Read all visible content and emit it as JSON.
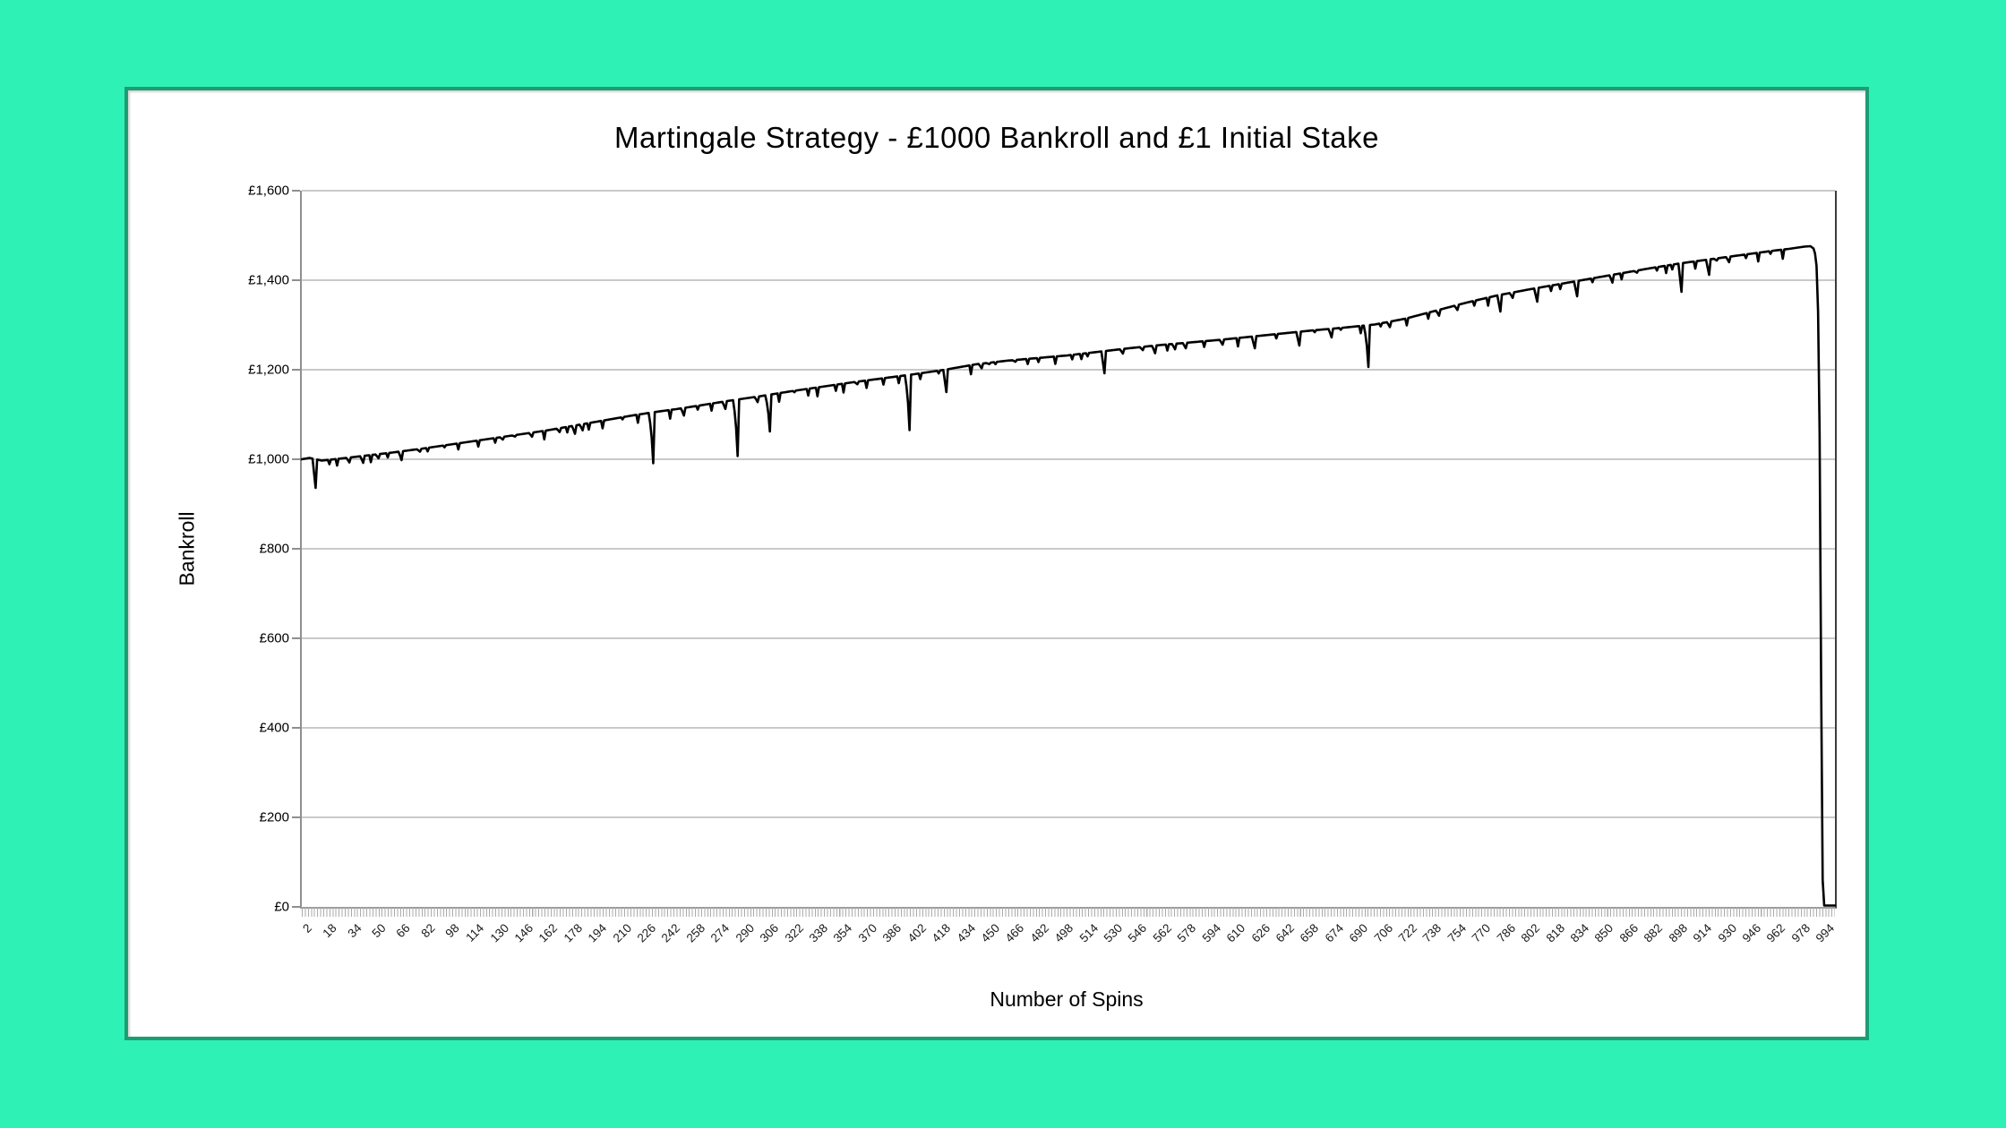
{
  "colors": {
    "page_background": "#2ef1b5",
    "panel_border": "#1e9c72",
    "panel_background": "#ffffff",
    "gridline": "#c9c9c9",
    "axis_line": "#8f8f8f",
    "plot_right_wall": "#3c3c3c",
    "series_line": "#000000"
  },
  "chart_data": {
    "type": "line",
    "title": "Martingale Strategy - £1000 Bankroll and £1 Initial Stake",
    "xlabel": "Number of Spins",
    "ylabel": "Bankroll",
    "legend": "none",
    "grid": true,
    "xlim": [
      1,
      1000
    ],
    "ylim": [
      0,
      1600
    ],
    "y_tick_values": [
      0,
      200,
      400,
      600,
      800,
      1000,
      1200,
      1400,
      1600
    ],
    "y_tick_labels": [
      "£0",
      "£200",
      "£400",
      "£600",
      "£800",
      "£1,000",
      "£1,200",
      "£1,400",
      "£1,600"
    ],
    "x_tick_labels": [
      2,
      18,
      34,
      50,
      66,
      82,
      98,
      114,
      130,
      146,
      162,
      178,
      194,
      210,
      226,
      242,
      258,
      274,
      290,
      306,
      322,
      338,
      354,
      370,
      386,
      402,
      418,
      434,
      450,
      466,
      482,
      498,
      514,
      530,
      546,
      562,
      578,
      594,
      610,
      626,
      642,
      658,
      674,
      690,
      706,
      722,
      738,
      754,
      770,
      786,
      802,
      818,
      834,
      850,
      866,
      882,
      898,
      914,
      930,
      946,
      962,
      978,
      994
    ],
    "series": [
      {
        "name": "Bankroll",
        "color": "#000000",
        "start_bankroll": 1000,
        "initial_stake": 1,
        "trend_keypoints": [
          [
            1,
            1000
          ],
          [
            6,
            1003
          ],
          [
            14,
            997
          ],
          [
            22,
            1000
          ],
          [
            30,
            1003
          ],
          [
            45,
            1009
          ],
          [
            60,
            1015
          ],
          [
            80,
            1024
          ],
          [
            100,
            1034
          ],
          [
            120,
            1044
          ],
          [
            140,
            1054
          ],
          [
            160,
            1064
          ],
          [
            180,
            1076
          ],
          [
            200,
            1088
          ],
          [
            215,
            1097
          ],
          [
            230,
            1105
          ],
          [
            245,
            1112
          ],
          [
            260,
            1120
          ],
          [
            280,
            1131
          ],
          [
            300,
            1141
          ],
          [
            320,
            1152
          ],
          [
            340,
            1162
          ],
          [
            360,
            1172
          ],
          [
            380,
            1181
          ],
          [
            400,
            1190
          ],
          [
            420,
            1200
          ],
          [
            440,
            1212
          ],
          [
            460,
            1220
          ],
          [
            480,
            1226
          ],
          [
            500,
            1232
          ],
          [
            520,
            1240
          ],
          [
            540,
            1248
          ],
          [
            560,
            1255
          ],
          [
            580,
            1261
          ],
          [
            600,
            1267
          ],
          [
            620,
            1274
          ],
          [
            640,
            1281
          ],
          [
            660,
            1288
          ],
          [
            680,
            1294
          ],
          [
            700,
            1301
          ],
          [
            720,
            1314
          ],
          [
            740,
            1332
          ],
          [
            760,
            1350
          ],
          [
            780,
            1366
          ],
          [
            800,
            1379
          ],
          [
            820,
            1391
          ],
          [
            840,
            1403
          ],
          [
            860,
            1415
          ],
          [
            880,
            1427
          ],
          [
            900,
            1438
          ],
          [
            915,
            1445
          ],
          [
            930,
            1452
          ],
          [
            945,
            1459
          ],
          [
            960,
            1466
          ],
          [
            970,
            1470
          ],
          [
            980,
            1475
          ],
          [
            984,
            1476
          ]
        ],
        "major_dips": [
          [
            10,
            936
          ],
          [
            19,
            989
          ],
          [
            57,
            1004
          ],
          [
            127,
            1037
          ],
          [
            174,
            1060
          ],
          [
            230,
            991
          ],
          [
            285,
            1007
          ],
          [
            306,
            1062
          ],
          [
            397,
            1065
          ],
          [
            421,
            1150
          ],
          [
            437,
            1190
          ],
          [
            524,
            1192
          ],
          [
            565,
            1243
          ],
          [
            622,
            1248
          ],
          [
            651,
            1254
          ],
          [
            696,
            1206
          ],
          [
            735,
            1314
          ],
          [
            782,
            1330
          ],
          [
            806,
            1352
          ],
          [
            832,
            1364
          ],
          [
            861,
            1402
          ],
          [
            900,
            1374
          ],
          [
            918,
            1412
          ],
          [
            950,
            1442
          ],
          [
            966,
            1448
          ]
        ],
        "crash_keypoints": [
          [
            986,
            1471
          ],
          [
            987,
            1460
          ],
          [
            988,
            1432
          ],
          [
            989,
            1330
          ],
          [
            990,
            1060
          ],
          [
            991,
            500
          ],
          [
            992,
            60
          ],
          [
            993,
            0
          ],
          [
            1000,
            0
          ]
        ],
        "texture": {
          "seed": 7,
          "min_gap": 4,
          "max_gap": 13,
          "min_depth": 3,
          "max_depth": 20
        }
      }
    ]
  }
}
